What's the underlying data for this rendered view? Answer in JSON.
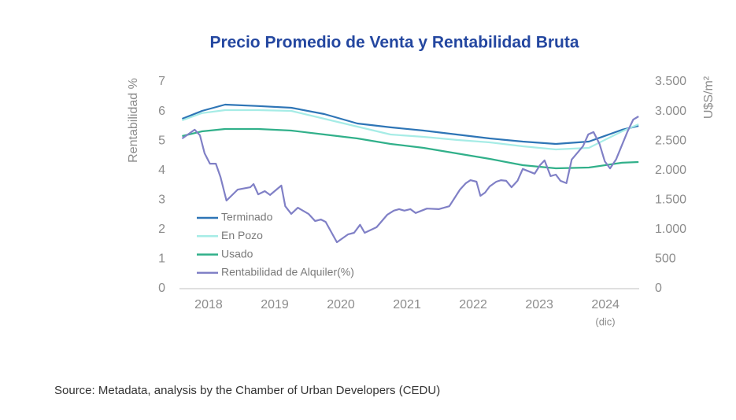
{
  "chart_data": {
    "type": "line",
    "title": "Precio Promedio de Venta y Rentabilidad Bruta",
    "ylabel": "Rentabilidad %",
    "y2label": "U$S/m²",
    "source": "Source: Metadata, analysis by the Chamber of Urban Developers (CEDU)",
    "annotation": "(dic)",
    "xlim": [
      2017.56,
      2024.51
    ],
    "xticks": [
      2018,
      2019,
      2020,
      2021,
      2022,
      2023,
      2024
    ],
    "ylim": [
      0,
      7
    ],
    "yticks": [
      0,
      1,
      2,
      3,
      4,
      5,
      6,
      7
    ],
    "y2lim": [
      0,
      3500
    ],
    "y2ticks": [
      0,
      500,
      {
        "value": 1000,
        "label": "1.000"
      },
      {
        "value": 1500,
        "label": "1.500"
      },
      {
        "value": 2000,
        "label": "2.000"
      },
      {
        "value": 2500,
        "label": "2.500"
      },
      {
        "value": 3000,
        "label": "3.000"
      },
      {
        "value": 3500,
        "label": "3.500"
      }
    ],
    "legend": "left",
    "series": [
      {
        "name": "Terminado",
        "color": "#2e75b6",
        "axis": "y2",
        "x": [
          2017.6,
          2017.9,
          2018.25,
          2018.75,
          2019.25,
          2019.75,
          2020.25,
          2020.75,
          2021.25,
          2021.75,
          2022.25,
          2022.75,
          2023.25,
          2023.75,
          2024.25,
          2024.5
        ],
        "values": [
          2875,
          3008,
          3114,
          3090,
          3061,
          2955,
          2795,
          2729,
          2675,
          2609,
          2542,
          2489,
          2449,
          2489,
          2688,
          2755
        ]
      },
      {
        "name": "En Pozo",
        "color": "#a6ece6",
        "axis": "y2",
        "x": [
          2017.6,
          2017.9,
          2018.25,
          2018.75,
          2019.25,
          2019.75,
          2020.25,
          2020.75,
          2021.25,
          2021.75,
          2022.25,
          2022.75,
          2023.25,
          2023.75,
          2024.25,
          2024.5
        ],
        "values": [
          2848,
          2970,
          3021,
          3021,
          3008,
          2875,
          2742,
          2609,
          2569,
          2516,
          2475,
          2409,
          2356,
          2382,
          2662,
          2782
        ]
      },
      {
        "name": "Usado",
        "color": "#31b08a",
        "axis": "y2",
        "x": [
          2017.6,
          2017.9,
          2018.25,
          2018.75,
          2019.25,
          2019.75,
          2020.25,
          2020.75,
          2021.25,
          2021.75,
          2022.25,
          2022.75,
          2023.25,
          2023.75,
          2024.25,
          2024.5
        ],
        "values": [
          2582,
          2662,
          2702,
          2702,
          2675,
          2609,
          2542,
          2449,
          2382,
          2289,
          2196,
          2090,
          2036,
          2050,
          2130,
          2143
        ]
      },
      {
        "name": "Rentabilidad de Alquiler(%)",
        "color": "#8080c6",
        "x": [
          2017.6,
          2017.79,
          2017.87,
          2017.94,
          2018.02,
          2018.11,
          2018.18,
          2018.27,
          2018.44,
          2018.63,
          2018.68,
          2018.75,
          2018.85,
          2018.93,
          2019.1,
          2019.16,
          2019.25,
          2019.35,
          2019.51,
          2019.61,
          2019.7,
          2019.77,
          2019.94,
          2020.11,
          2020.2,
          2020.29,
          2020.36,
          2020.54,
          2020.7,
          2020.8,
          2020.88,
          2020.96,
          2021.05,
          2021.13,
          2021.3,
          2021.48,
          2021.56,
          2021.64,
          2021.8,
          2021.89,
          2021.96,
          2022.05,
          2022.11,
          2022.18,
          2022.25,
          2022.35,
          2022.42,
          2022.5,
          2022.58,
          2022.67,
          2022.75,
          2022.93,
          2023.01,
          2023.08,
          2023.17,
          2023.25,
          2023.32,
          2023.41,
          2023.49,
          2023.66,
          2023.74,
          2023.82,
          2023.91,
          2023.99,
          2024.07,
          2024.16,
          2024.33,
          2024.42,
          2024.5
        ],
        "values": [
          5.08,
          5.38,
          5.19,
          4.58,
          4.23,
          4.23,
          3.78,
          2.98,
          3.35,
          3.43,
          3.54,
          3.19,
          3.3,
          3.17,
          3.49,
          2.79,
          2.53,
          2.74,
          2.53,
          2.29,
          2.34,
          2.26,
          1.57,
          1.84,
          1.89,
          2.16,
          1.89,
          2.08,
          2.5,
          2.64,
          2.69,
          2.64,
          2.69,
          2.56,
          2.71,
          2.69,
          2.74,
          2.79,
          3.35,
          3.57,
          3.67,
          3.62,
          3.14,
          3.25,
          3.46,
          3.62,
          3.67,
          3.65,
          3.43,
          3.65,
          4.05,
          3.89,
          4.18,
          4.34,
          3.81,
          3.86,
          3.65,
          3.57,
          4.37,
          4.82,
          5.22,
          5.3,
          4.9,
          4.31,
          4.07,
          4.37,
          5.3,
          5.72,
          5.83
        ]
      }
    ]
  }
}
